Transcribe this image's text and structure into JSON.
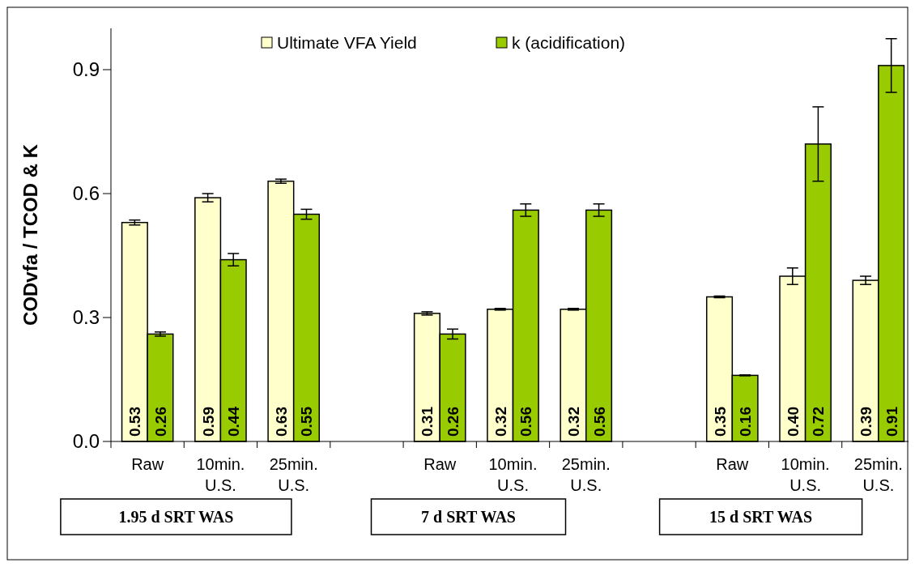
{
  "chart_data": {
    "type": "bar",
    "ylabel": "CODvfa / TCOD & K",
    "categories": [
      "Raw",
      "10min. U.S.",
      "25min. U.S.",
      null,
      "Raw",
      "10min. U.S.",
      "25min. U.S.",
      null,
      "Raw",
      "10min. U.S.",
      "25min. U.S."
    ],
    "series": [
      {
        "name": "Ultimate VFA Yield",
        "color": "#ffffcc",
        "values": [
          0.53,
          0.59,
          0.63,
          null,
          0.31,
          0.32,
          0.32,
          null,
          0.35,
          0.4,
          0.39
        ],
        "value_labels": [
          "0.53",
          "0.59",
          "0.63",
          null,
          "0.31",
          "0.32",
          "0.32",
          null,
          "0.35",
          "0.40",
          "0.39"
        ],
        "errors": [
          0.006,
          0.01,
          0.005,
          null,
          0.004,
          0.002,
          0.002,
          null,
          0.002,
          0.02,
          0.01
        ]
      },
      {
        "name": "k (acidification)",
        "color": "#99cc00",
        "values": [
          0.26,
          0.44,
          0.55,
          null,
          0.26,
          0.56,
          0.56,
          null,
          0.16,
          0.72,
          0.91
        ],
        "value_labels": [
          "0.26",
          "0.44",
          "0.55",
          null,
          "0.26",
          "0.56",
          "0.56",
          null,
          "0.16",
          "0.72",
          "0.91"
        ],
        "errors": [
          0.005,
          0.015,
          0.012,
          null,
          0.012,
          0.015,
          0.015,
          null,
          0.001,
          0.09,
          0.065
        ]
      }
    ],
    "ylim": [
      0,
      1
    ],
    "yticks": [
      {
        "value": 0,
        "label": "0.0"
      },
      {
        "value": 0.3,
        "label": "0.3"
      },
      {
        "value": 0.6,
        "label": "0.6"
      },
      {
        "value": 0.9,
        "label": "0.9"
      }
    ],
    "legend": "top",
    "grid": false,
    "annotations": [
      "1.95 d SRT WAS",
      "7 d SRT WAS",
      "15 d SRT WAS"
    ]
  }
}
